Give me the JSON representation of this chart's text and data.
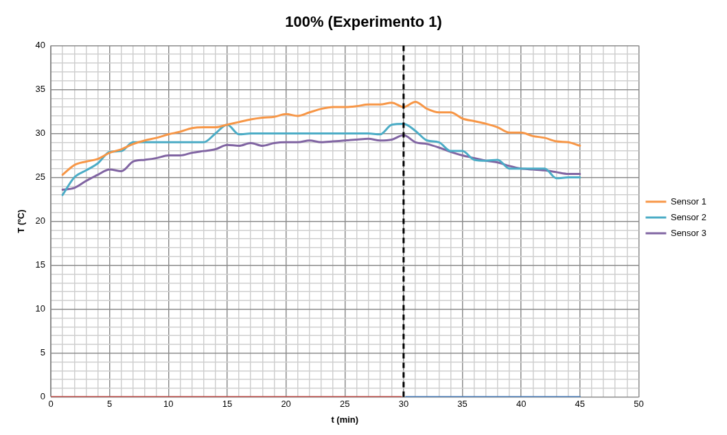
{
  "chart_data": {
    "type": "line",
    "title": "100% (Experimento 1)",
    "xlabel": "t (min)",
    "ylabel": "T (ºC)",
    "xlim": [
      0,
      50
    ],
    "ylim": [
      0,
      40
    ],
    "xticks": [
      0,
      {
        "value": 1,
        "label": null
      },
      {
        "value": 2,
        "label": null
      },
      {
        "value": 3,
        "label": null
      },
      {
        "value": 4,
        "label": null
      },
      5,
      {
        "value": 6,
        "label": null
      },
      {
        "value": 7,
        "label": null
      },
      {
        "value": 8,
        "label": null
      },
      {
        "value": 9,
        "label": null
      },
      10,
      {
        "value": 11,
        "label": null
      },
      {
        "value": 12,
        "label": null
      },
      {
        "value": 13,
        "label": null
      },
      {
        "value": 14,
        "label": null
      },
      15,
      {
        "value": 16,
        "label": null
      },
      {
        "value": 17,
        "label": null
      },
      {
        "value": 18,
        "label": null
      },
      {
        "value": 19,
        "label": null
      },
      20,
      {
        "value": 21,
        "label": null
      },
      {
        "value": 22,
        "label": null
      },
      {
        "value": 23,
        "label": null
      },
      {
        "value": 24,
        "label": null
      },
      25,
      {
        "value": 26,
        "label": null
      },
      {
        "value": 27,
        "label": null
      },
      {
        "value": 28,
        "label": null
      },
      {
        "value": 29,
        "label": null
      },
      30,
      {
        "value": 31,
        "label": null
      },
      {
        "value": 32,
        "label": null
      },
      {
        "value": 33,
        "label": null
      },
      {
        "value": 34,
        "label": null
      },
      35,
      {
        "value": 36,
        "label": null
      },
      {
        "value": 37,
        "label": null
      },
      {
        "value": 38,
        "label": null
      },
      {
        "value": 39,
        "label": null
      },
      40,
      {
        "value": 41,
        "label": null
      },
      {
        "value": 42,
        "label": null
      },
      {
        "value": 43,
        "label": null
      },
      {
        "value": 44,
        "label": null
      },
      45,
      {
        "value": 46,
        "label": null
      },
      {
        "value": 47,
        "label": null
      },
      {
        "value": 48,
        "label": null
      },
      {
        "value": 49,
        "label": null
      },
      50
    ],
    "yticks": [
      0,
      {
        "value": 1,
        "label": null
      },
      {
        "value": 2,
        "label": null
      },
      {
        "value": 3,
        "label": null
      },
      {
        "value": 4,
        "label": null
      },
      5,
      {
        "value": 6,
        "label": null
      },
      {
        "value": 7,
        "label": null
      },
      {
        "value": 8,
        "label": null
      },
      {
        "value": 9,
        "label": null
      },
      10,
      {
        "value": 11,
        "label": null
      },
      {
        "value": 12,
        "label": null
      },
      {
        "value": 13,
        "label": null
      },
      {
        "value": 14,
        "label": null
      },
      15,
      {
        "value": 16,
        "label": null
      },
      {
        "value": 17,
        "label": null
      },
      {
        "value": 18,
        "label": null
      },
      {
        "value": 19,
        "label": null
      },
      20,
      {
        "value": 21,
        "label": null
      },
      {
        "value": 22,
        "label": null
      },
      {
        "value": 23,
        "label": null
      },
      {
        "value": 24,
        "label": null
      },
      25,
      {
        "value": 26,
        "label": null
      },
      {
        "value": 27,
        "label": null
      },
      {
        "value": 28,
        "label": null
      },
      {
        "value": 29,
        "label": null
      },
      30,
      {
        "value": 31,
        "label": null
      },
      {
        "value": 32,
        "label": null
      },
      {
        "value": 33,
        "label": null
      },
      {
        "value": 34,
        "label": null
      },
      35,
      {
        "value": 36,
        "label": null
      },
      {
        "value": 37,
        "label": null
      },
      {
        "value": 38,
        "label": null
      },
      {
        "value": 39,
        "label": null
      },
      40
    ],
    "grid": true,
    "legend": "right",
    "marker": "none",
    "line_style": "solid",
    "x": [
      1,
      2,
      3,
      4,
      5,
      6,
      7,
      8,
      9,
      10,
      11,
      12,
      13,
      14,
      15,
      16,
      17,
      18,
      19,
      20,
      21,
      22,
      23,
      24,
      25,
      26,
      27,
      28,
      29,
      30,
      31,
      32,
      33,
      34,
      35,
      36,
      37,
      38,
      39,
      40,
      41,
      42,
      43,
      44,
      45
    ],
    "series": [
      {
        "name": "Sensor 1",
        "color": "#f79646",
        "values": [
          25.3,
          26.4,
          26.8,
          27.1,
          27.8,
          28.2,
          28.8,
          29.2,
          29.5,
          29.9,
          30.2,
          30.6,
          30.7,
          30.7,
          31.0,
          31.3,
          31.6,
          31.8,
          31.9,
          32.2,
          32.0,
          32.4,
          32.8,
          33.0,
          33.0,
          33.1,
          33.3,
          33.3,
          33.5,
          33.0,
          33.6,
          32.8,
          32.4,
          32.4,
          31.7,
          31.4,
          31.1,
          30.7,
          30.1,
          30.1,
          29.7,
          29.5,
          29.1,
          29.0,
          28.6
        ]
      },
      {
        "name": "Sensor 2",
        "color": "#4bacc6",
        "values": [
          23.0,
          25.0,
          25.8,
          26.6,
          27.9,
          28.0,
          29.0,
          29.0,
          29.0,
          29.0,
          29.0,
          29.0,
          29.0,
          30.0,
          31.0,
          29.9,
          30.0,
          30.0,
          30.0,
          30.0,
          30.0,
          30.0,
          30.0,
          30.0,
          30.0,
          30.0,
          30.0,
          29.9,
          31.0,
          31.1,
          30.3,
          29.2,
          29.0,
          28.0,
          28.0,
          27.0,
          26.9,
          27.0,
          26.0,
          26.0,
          26.0,
          26.0,
          24.9,
          25.0,
          25.0
        ]
      },
      {
        "name": "Sensor 3",
        "color": "#8064a2",
        "values": [
          23.6,
          23.8,
          24.6,
          25.3,
          25.9,
          25.7,
          26.8,
          27.0,
          27.2,
          27.5,
          27.5,
          27.8,
          28.0,
          28.2,
          28.7,
          28.6,
          28.9,
          28.6,
          28.9,
          29.0,
          29.0,
          29.2,
          29.0,
          29.1,
          29.2,
          29.3,
          29.4,
          29.2,
          29.3,
          29.8,
          29.0,
          28.8,
          28.4,
          27.9,
          27.5,
          27.2,
          26.9,
          26.7,
          26.3,
          26.0,
          25.9,
          25.8,
          25.6,
          25.4,
          25.4
        ]
      },
      {
        "color": "#c0504d",
        "x": [
          0,
          29.8
        ],
        "values": [
          0,
          0
        ]
      },
      {
        "color": "#4f81bd",
        "x": [
          30.2,
          45
        ],
        "values": [
          0,
          0
        ]
      }
    ],
    "ref_lines": [
      {
        "axis": "x",
        "value": 30,
        "color": "#000000",
        "line_style": "dashed"
      }
    ]
  }
}
